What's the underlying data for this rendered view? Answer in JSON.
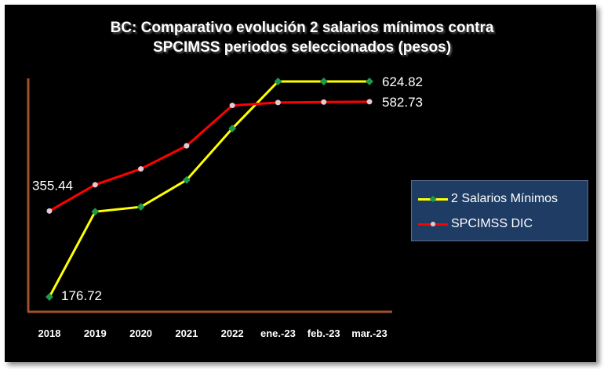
{
  "chart_data": {
    "type": "line",
    "title_lines": [
      "BC: Comparativo evolución 2 salarios mínimos contra",
      "SPCIMSS periodos seleccionados (pesos)"
    ],
    "categories": [
      "2018",
      "2019",
      "2020",
      "2021",
      "2022",
      "ene.-23",
      "feb.-23",
      "mar.-23"
    ],
    "series": [
      {
        "name": "2 Salarios Mínimos",
        "color": "#ffff00",
        "marker_color": "#1a9a4a",
        "values": [
          176.72,
          354,
          364,
          420,
          527,
          624.82,
          624.82,
          624.82
        ]
      },
      {
        "name": "SPCIMSS DIC",
        "color": "#ff0000",
        "marker_color": "#e6c8d2",
        "values": [
          355.44,
          410,
          443,
          491,
          575,
          581,
          582,
          582.73
        ]
      }
    ],
    "data_labels": [
      {
        "series": 0,
        "index": 0,
        "text": "176.72"
      },
      {
        "series": 0,
        "index": 7,
        "text": "624.82"
      },
      {
        "series": 1,
        "index": 0,
        "text": "355.44"
      },
      {
        "series": 1,
        "index": 7,
        "text": "582.73"
      }
    ],
    "ylim": [
      160,
      650
    ],
    "legend_position": "right",
    "grid": false
  }
}
